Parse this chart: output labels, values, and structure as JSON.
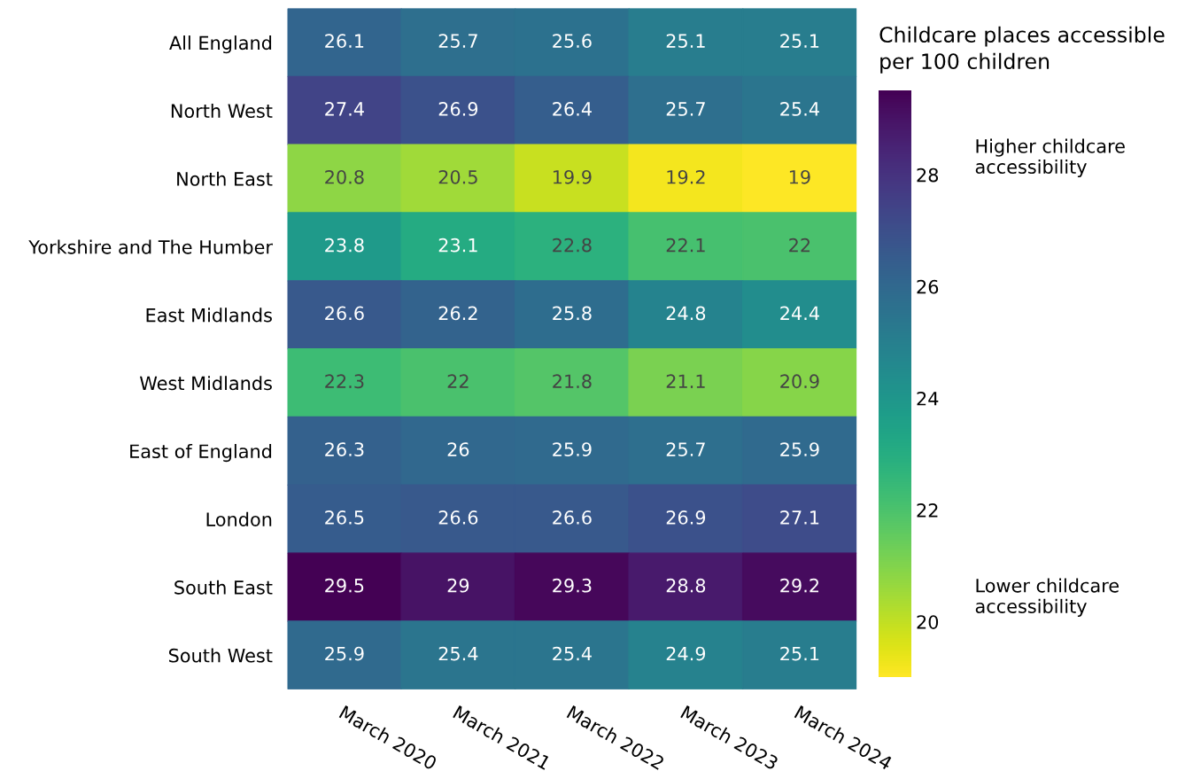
{
  "chart_data": {
    "type": "heatmap",
    "categories": [
      "March 2020",
      "March 2021",
      "March 2022",
      "March 2023",
      "March 2024"
    ],
    "y_categories": [
      "All England",
      "North West",
      "North East",
      "Yorkshire and The Humber",
      "East Midlands",
      "West Midlands",
      "East of England",
      "London",
      "South East",
      "South West"
    ],
    "cells": [
      [
        26.1,
        25.7,
        25.6,
        25.1,
        25.1
      ],
      [
        27.4,
        26.9,
        26.4,
        25.7,
        25.4
      ],
      [
        20.8,
        20.5,
        19.9,
        19.2,
        19
      ],
      [
        23.8,
        23.1,
        22.8,
        22.1,
        22
      ],
      [
        26.6,
        26.2,
        25.8,
        24.8,
        24.4
      ],
      [
        22.3,
        22,
        21.8,
        21.1,
        20.9
      ],
      [
        26.3,
        26,
        25.9,
        25.7,
        25.9
      ],
      [
        26.5,
        26.6,
        26.6,
        26.9,
        27.1
      ],
      [
        29.5,
        29,
        29.3,
        28.8,
        29.2
      ],
      [
        25.9,
        25.4,
        25.4,
        24.9,
        25.1
      ]
    ],
    "clabel": "Childcare places accessible\nper 100 children",
    "clim": [
      19,
      29.5
    ],
    "cticks": [
      20,
      22,
      24,
      26,
      28
    ],
    "data_labels": true,
    "annotations": [
      "Higher childcare\naccessibility",
      "Lower childcare\naccessibility"
    ]
  }
}
